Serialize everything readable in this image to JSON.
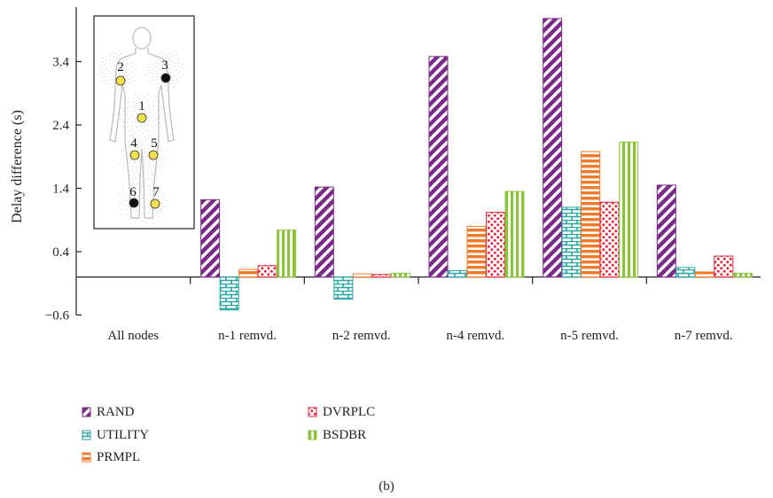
{
  "chart_data": {
    "type": "bar",
    "ylabel": "Delay difference (s)",
    "ylim": [
      -0.6,
      4.3
    ],
    "yticks": [
      "3.4",
      "2.4",
      "1.4",
      "0.4",
      "−0.6"
    ],
    "ytick_values": [
      3.4,
      2.4,
      1.4,
      0.4,
      -0.6
    ],
    "categories": [
      "All nodes",
      "n-1 remvd.",
      "n-2 remvd.",
      "n-4 remvd.",
      "n-5 remvd.",
      "n-7 remvd."
    ],
    "series": [
      {
        "name": "RAND",
        "color": "#7b2a8a",
        "pattern": "diagonal-stripes",
        "values": [
          null,
          1.22,
          1.42,
          3.48,
          4.08,
          1.45
        ]
      },
      {
        "name": "UTILITY",
        "color": "#2aa3a3",
        "pattern": "bricks",
        "values": [
          null,
          -0.52,
          -0.35,
          0.1,
          1.1,
          0.15
        ]
      },
      {
        "name": "PRMPL",
        "color": "#f07a2a",
        "pattern": "horizontal-stripes",
        "values": [
          null,
          0.12,
          0.05,
          0.8,
          1.98,
          0.08
        ]
      },
      {
        "name": "DVRPLC",
        "color": "#e8283a",
        "pattern": "dots",
        "values": [
          null,
          0.18,
          0.04,
          1.02,
          1.18,
          0.33
        ]
      },
      {
        "name": "BSDBR",
        "color": "#8ac43a",
        "pattern": "vertical-stripes",
        "values": [
          null,
          0.74,
          0.06,
          1.35,
          2.13,
          0.06
        ]
      }
    ],
    "legend_placement": "bottom-left",
    "caption": "(b)",
    "inset": {
      "type": "body-diagram",
      "nodes": [
        {
          "label": "1",
          "color": "#f4e04a"
        },
        {
          "label": "2",
          "color": "#f4e04a"
        },
        {
          "label": "3",
          "color": "#111111"
        },
        {
          "label": "4",
          "color": "#f4e04a"
        },
        {
          "label": "5",
          "color": "#f4e04a"
        },
        {
          "label": "6",
          "color": "#111111"
        },
        {
          "label": "7",
          "color": "#f4e04a"
        }
      ]
    }
  }
}
